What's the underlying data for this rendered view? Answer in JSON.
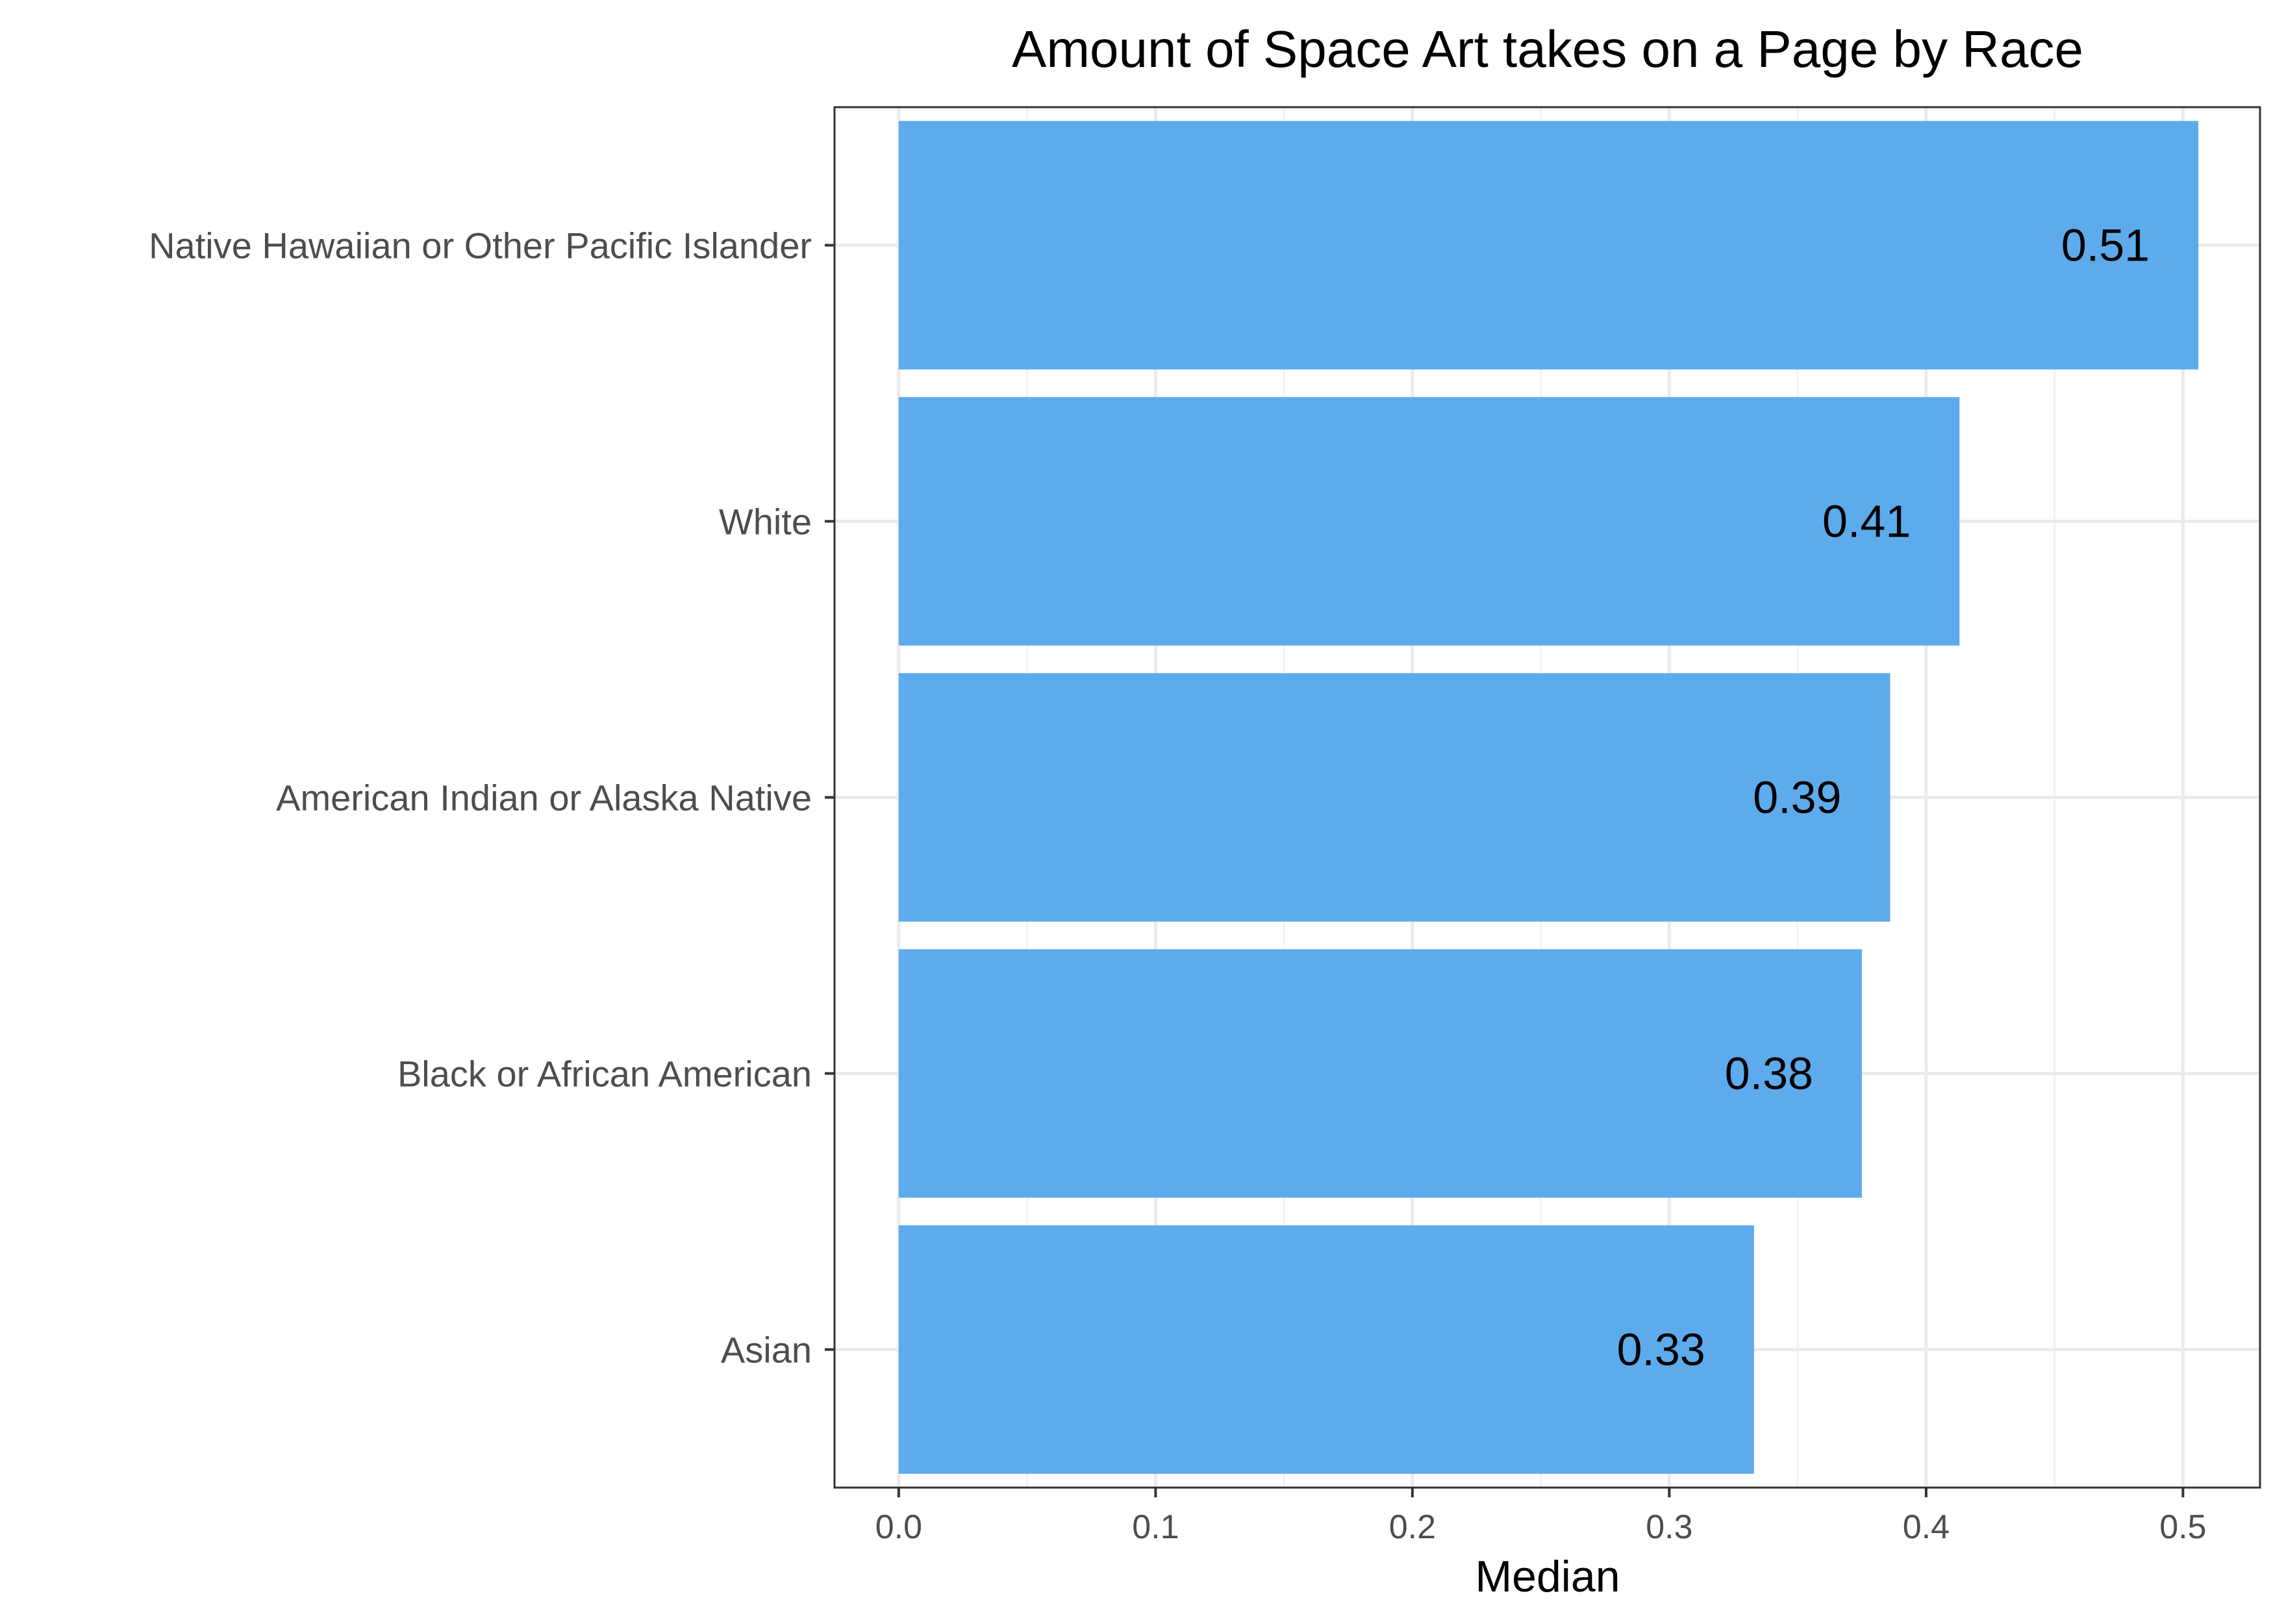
{
  "chart_data": {
    "type": "bar",
    "orientation": "horizontal",
    "title": "Amount of Space Art takes on a Page by Race",
    "xlabel": "Median",
    "ylabel": "",
    "categories": [
      "Native Hawaiian or Other Pacific Islander",
      "White",
      "American Indian or Alaska Native",
      "Black or African American",
      "Asian"
    ],
    "values": [
      0.506,
      0.413,
      0.386,
      0.375,
      0.333
    ],
    "data_labels": [
      "0.51",
      "0.41",
      "0.39",
      "0.38",
      "0.33"
    ],
    "xlim": [
      -0.025,
      0.53
    ],
    "xticks": [
      0.0,
      0.1,
      0.2,
      0.3,
      0.4,
      0.5
    ],
    "xtick_labels": [
      "0.0",
      "0.1",
      "0.2",
      "0.3",
      "0.4",
      "0.5"
    ],
    "bar_color": "#5dabec",
    "grid": true,
    "legend": "none"
  }
}
